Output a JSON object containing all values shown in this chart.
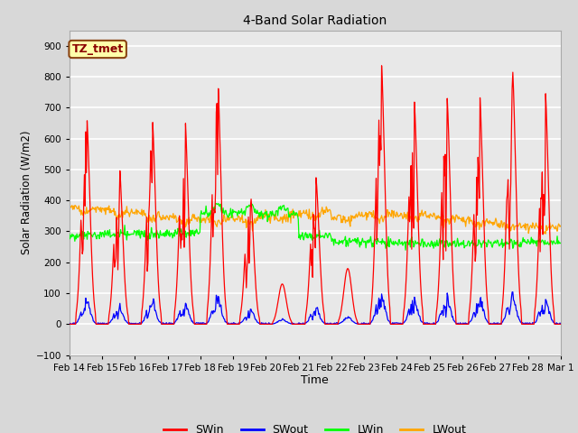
{
  "title": "4-Band Solar Radiation",
  "xlabel": "Time",
  "ylabel": "Solar Radiation (W/m2)",
  "ylim": [
    -100,
    950
  ],
  "yticks": [
    -100,
    0,
    100,
    200,
    300,
    400,
    500,
    600,
    700,
    800,
    900
  ],
  "colors": {
    "SWin": "red",
    "SWout": "blue",
    "LWin": "lime",
    "LWout": "orange"
  },
  "annotation_text": "TZ_tmet",
  "bg_color": "#d8d8d8",
  "plot_bg_color": "#e8e8e8",
  "grid_color": "white",
  "linewidth": 0.9,
  "xtick_labels": [
    "Feb 14",
    "Feb 15",
    "Feb 16",
    "Feb 17",
    "Feb 18",
    "Feb 19",
    "Feb 20",
    "Feb 21",
    "Feb 22",
    "Feb 23",
    "Feb 24",
    "Feb 25",
    "Feb 26",
    "Feb 27",
    "Feb 28",
    "Mar 1"
  ]
}
